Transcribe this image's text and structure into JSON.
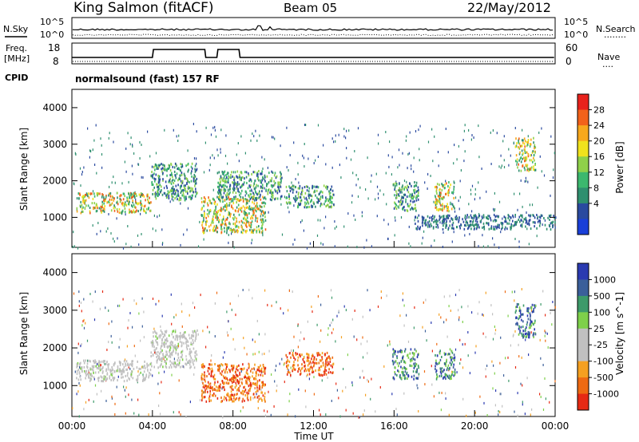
{
  "header": {
    "station": "King Salmon (fitACF)",
    "beam": "Beam 05",
    "date": "22/May/2012"
  },
  "noise_panel": {
    "left_label": "N.Sky",
    "right_label": "N.Search",
    "right_marker": "........",
    "tick_top": "10^5",
    "tick_bottom": "10^0"
  },
  "freq_panel": {
    "left_label_1": "Freq.",
    "left_label_2": "[MHz]",
    "left_ticks": [
      "18",
      "8"
    ],
    "right_ticks": [
      "60",
      "0"
    ],
    "right_label": "Nave",
    "right_marker": "....",
    "cpid_label": "CPID",
    "cpid_text": "normalsound (fast) 157 RF"
  },
  "chart_data": [
    {
      "type": "heatmap",
      "title": "",
      "xlabel": "",
      "ylabel": "Slant Range [km]",
      "xlim": [
        0,
        24
      ],
      "ylim": [
        180,
        4500
      ],
      "y_ticks": [
        "4000",
        "3000",
        "2000",
        "1000"
      ],
      "colorbar": {
        "label": "Power [dB]",
        "ticks": [
          "28",
          "24",
          "20",
          "16",
          "12",
          "8",
          "4"
        ],
        "colors": [
          "#e8221c",
          "#f2621a",
          "#f7a81d",
          "#f0e21d",
          "#8fd14a",
          "#3cb86e",
          "#2f8f6f",
          "#2a4a9f",
          "#1a3fd8"
        ]
      },
      "echo_regions": [
        {
          "x": [
            0.2,
            3.9
          ],
          "y": [
            1150,
            1700
          ],
          "level": "high"
        },
        {
          "x": [
            3.9,
            6.2
          ],
          "y": [
            1500,
            2500
          ],
          "level": "medium"
        },
        {
          "x": [
            6.4,
            9.6
          ],
          "y": [
            600,
            1600
          ],
          "level": "high"
        },
        {
          "x": [
            7.2,
            10.4
          ],
          "y": [
            1500,
            2300
          ],
          "level": "medium"
        },
        {
          "x": [
            10.6,
            13.0
          ],
          "y": [
            1300,
            1900
          ],
          "level": "medium"
        },
        {
          "x": [
            15.9,
            17.2
          ],
          "y": [
            1200,
            2000
          ],
          "level": "medium"
        },
        {
          "x": [
            18.0,
            19.0
          ],
          "y": [
            1200,
            2000
          ],
          "level": "high"
        },
        {
          "x": [
            17.0,
            24.0
          ],
          "y": [
            700,
            1100
          ],
          "level": "low"
        },
        {
          "x": [
            22.0,
            23.0
          ],
          "y": [
            2300,
            3200
          ],
          "level": "high"
        }
      ]
    },
    {
      "type": "heatmap",
      "title": "",
      "xlabel": "Time UT",
      "ylabel": "Slant Range [km]",
      "xlim": [
        0,
        24
      ],
      "ylim": [
        180,
        4500
      ],
      "x_ticks": [
        "00:00",
        "04:00",
        "08:00",
        "12:00",
        "16:00",
        "20:00",
        "00:00"
      ],
      "y_ticks": [
        "4000",
        "3000",
        "2000",
        "1000"
      ],
      "colorbar": {
        "label": "Velocity [m s^-1]",
        "ticks": [
          "1000",
          "500",
          "100",
          "25",
          "-25",
          "-100",
          "-500",
          "-1000"
        ],
        "colors": [
          "#2a3ab0",
          "#3b5f9a",
          "#3d9a6a",
          "#7ed04a",
          "#c0c0c0",
          "#c0c0c0",
          "#f5a020",
          "#ee6a12",
          "#e62a14"
        ]
      },
      "echo_regions": [
        {
          "x": [
            0.2,
            3.9
          ],
          "y": [
            1150,
            1700
          ],
          "velocity": "near-zero"
        },
        {
          "x": [
            3.9,
            6.2
          ],
          "y": [
            1500,
            2500
          ],
          "velocity": "near-zero"
        },
        {
          "x": [
            6.4,
            9.6
          ],
          "y": [
            600,
            1600
          ],
          "velocity": "negative"
        },
        {
          "x": [
            10.6,
            13.0
          ],
          "y": [
            1300,
            1900
          ],
          "velocity": "negative"
        },
        {
          "x": [
            15.9,
            17.2
          ],
          "y": [
            1200,
            2000
          ],
          "velocity": "positive"
        },
        {
          "x": [
            18.0,
            19.0
          ],
          "y": [
            1200,
            2000
          ],
          "velocity": "positive"
        },
        {
          "x": [
            22.0,
            23.0
          ],
          "y": [
            2300,
            3200
          ],
          "velocity": "positive"
        }
      ]
    }
  ]
}
